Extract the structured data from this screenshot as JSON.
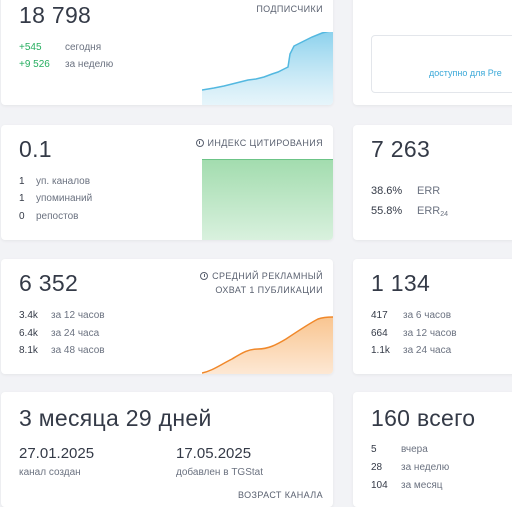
{
  "subscribers": {
    "value": "18 798",
    "label": "ПОДПИСЧИКИ",
    "today_delta": "+545",
    "today_label": "сегодня",
    "week_delta": "+9 526",
    "week_label": "за неделю",
    "accent": "#27ae60",
    "spark_color": "#53b8e0"
  },
  "premium": {
    "link_text": "доступно для Pre"
  },
  "citation": {
    "value": "0.1",
    "label": "ИНДЕКС ЦИТИРОВАНИЯ",
    "icon": "clock-icon",
    "rows": [
      {
        "num": "1",
        "text": "уп. каналов"
      },
      {
        "num": "1",
        "text": "упоминаний"
      },
      {
        "num": "0",
        "text": "репостов"
      }
    ],
    "fill_color": "#a6dfb3"
  },
  "err": {
    "value": "7 263",
    "rows": [
      {
        "num": "38.6%",
        "text": "ERR",
        "sub": ""
      },
      {
        "num": "55.8%",
        "text": "ERR",
        "sub": "24"
      }
    ]
  },
  "reach": {
    "value": "6 352",
    "label_line1": "СРЕДНИЙ РЕКЛАМНЫЙ",
    "label_line2": "ОХВАТ 1 ПУБЛИКАЦИИ",
    "icon": "clock-icon",
    "rows": [
      {
        "num": "3.4k",
        "text": "за 12 часов"
      },
      {
        "num": "6.4k",
        "text": "за 24 часа"
      },
      {
        "num": "8.1k",
        "text": "за 48 часов"
      }
    ],
    "spark_color": "#f0882a"
  },
  "views": {
    "value": "1 134",
    "rows": [
      {
        "num": "417",
        "text": "за 6 часов"
      },
      {
        "num": "664",
        "text": "за 12 часов"
      },
      {
        "num": "1.1k",
        "text": "за 24 часа"
      }
    ]
  },
  "age": {
    "value": "3 месяца 29 дней",
    "created_date": "27.01.2025",
    "created_label": "канал создан",
    "added_date": "17.05.2025",
    "added_label": "добавлен в TGStat",
    "footer": "ВОЗРАСТ КАНАЛА"
  },
  "posts": {
    "value": "160 всего",
    "rows": [
      {
        "num": "5",
        "text": "вчера"
      },
      {
        "num": "28",
        "text": "за неделю"
      },
      {
        "num": "104",
        "text": "за месяц"
      }
    ]
  }
}
